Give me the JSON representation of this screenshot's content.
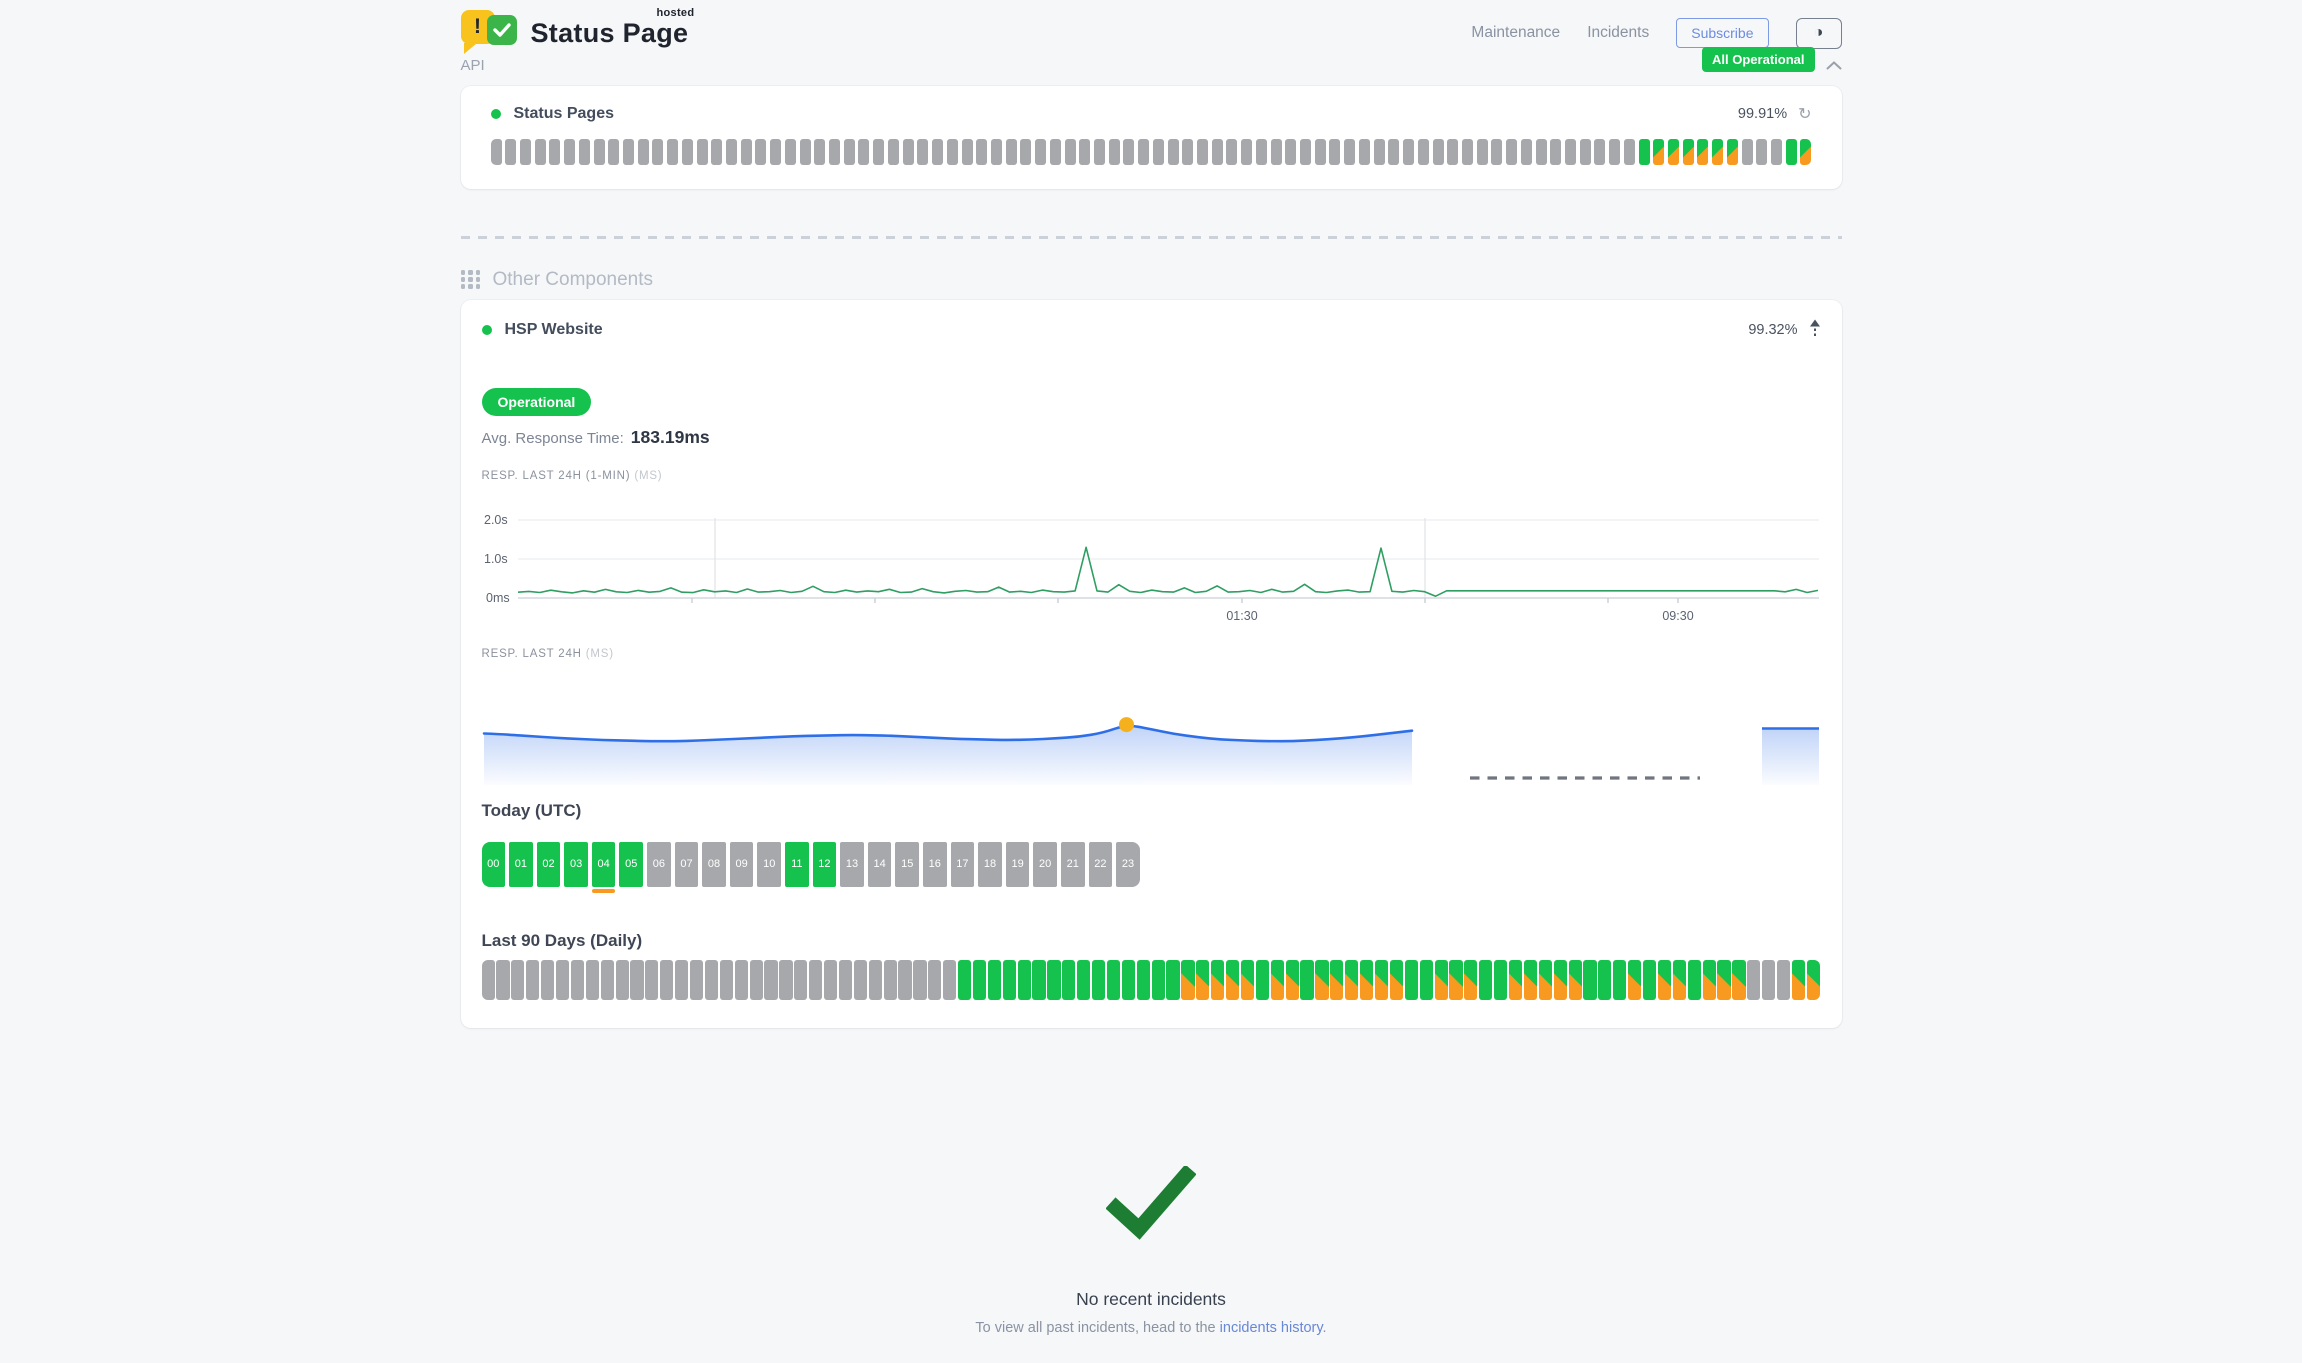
{
  "colors": {
    "green": "#16c24e",
    "orange": "#f79a1f",
    "gray_bar": "#a6a8ab",
    "blue": "#2e6fe8",
    "chart_green": "#2f9e63",
    "marker": "#f5b01e",
    "link": "#6787d7",
    "check": "#1d7d33"
  },
  "header": {
    "brand": {
      "name": "Status Page",
      "superscript": "hosted",
      "bubble_char": "!"
    },
    "nav": [
      "Maintenance",
      "Incidents"
    ],
    "subscribe_label": "Subscribe",
    "theme_toggle_glyph": "◑",
    "overall_status_badge": "All Operational"
  },
  "api": {
    "title": "API",
    "component": {
      "name": "Status Pages",
      "uptime": "99.91%"
    },
    "bars_legend": {
      "nodata": "gray",
      "up": "green",
      "deg": "green/orange split"
    },
    "bar_segments": [
      {
        "s": "nodata",
        "n": 78
      },
      {
        "s": "up",
        "n": 1
      },
      {
        "s": "deg",
        "n": 6
      },
      {
        "s": "nodata",
        "n": 3
      },
      {
        "s": "up",
        "n": 1
      },
      {
        "s": "deg",
        "n": 1
      }
    ]
  },
  "other": {
    "title": "Other Components",
    "component": {
      "name": "HSP Website",
      "uptime": "99.32%",
      "status_badge": "Operational",
      "avg_response_label": "Avg. Response Time:",
      "avg_response_value": "183.19ms",
      "chart1": {
        "label": "RESP. LAST 24H (1-MIN)",
        "unit_label": "(MS)",
        "chart_data": {
          "type": "line",
          "unit": "ms",
          "ylim_ms": [
            0,
            2000
          ],
          "y_ticks": [
            "2.0s",
            "1.0s",
            "0ms"
          ],
          "x_ticks": [
            "01:30",
            "09:30"
          ],
          "values_ms": [
            150,
            170,
            140,
            200,
            160,
            130,
            185,
            150,
            220,
            160,
            140,
            195,
            150,
            170,
            260,
            150,
            138,
            210,
            160,
            182,
            142,
            230,
            152,
            162,
            192,
            140,
            172,
            300,
            162,
            142,
            200,
            152,
            182,
            162,
            222,
            142,
            152,
            240,
            162,
            132,
            172,
            192,
            152,
            162,
            280,
            152,
            172,
            142,
            202,
            162,
            152,
            182,
            1300,
            182,
            152,
            340,
            172,
            142,
            202,
            162,
            152,
            260,
            142,
            172,
            310,
            152,
            162,
            192,
            142,
            222,
            152,
            172,
            350,
            162,
            142,
            182,
            202,
            152,
            162,
            1280,
            172,
            152,
            192,
            162,
            45,
            185,
            185,
            185,
            185,
            185,
            185,
            185,
            185,
            185,
            185,
            185,
            185,
            185,
            185,
            185,
            185,
            185,
            185,
            185,
            185,
            185,
            185,
            185,
            185,
            185,
            185,
            185,
            185,
            185,
            185,
            185,
            160,
            220,
            140,
            195
          ]
        }
      },
      "chart2": {
        "label": "RESP. LAST 24H",
        "unit_label": "(MS)",
        "chart_data": {
          "type": "area",
          "unit": "ms",
          "values_ms": [
            196,
            194,
            191,
            188,
            186,
            184,
            183,
            182,
            182,
            183,
            185,
            187,
            189,
            191,
            192,
            193,
            193,
            192,
            190,
            188,
            186,
            185,
            184,
            185,
            187,
            190,
            197,
            212,
            204,
            195,
            189,
            185,
            183,
            182,
            182,
            184,
            187,
            191,
            196,
            201
          ],
          "marker_index": 27,
          "gap": {
            "style": "dashed",
            "note": "missing data between segments"
          },
          "tail_value_ms": 205
        }
      },
      "today": {
        "title": "Today (UTC)",
        "hours": [
          {
            "label": "00",
            "state": "up"
          },
          {
            "label": "01",
            "state": "up"
          },
          {
            "label": "02",
            "state": "up"
          },
          {
            "label": "03",
            "state": "up"
          },
          {
            "label": "04",
            "state": "up",
            "current": true
          },
          {
            "label": "05",
            "state": "up"
          },
          {
            "label": "06",
            "state": "nodata"
          },
          {
            "label": "07",
            "state": "nodata"
          },
          {
            "label": "08",
            "state": "nodata"
          },
          {
            "label": "09",
            "state": "nodata"
          },
          {
            "label": "10",
            "state": "nodata"
          },
          {
            "label": "11",
            "state": "up"
          },
          {
            "label": "12",
            "state": "up"
          },
          {
            "label": "13",
            "state": "nodata"
          },
          {
            "label": "14",
            "state": "nodata"
          },
          {
            "label": "15",
            "state": "nodata"
          },
          {
            "label": "16",
            "state": "nodata"
          },
          {
            "label": "17",
            "state": "nodata"
          },
          {
            "label": "18",
            "state": "nodata"
          },
          {
            "label": "19",
            "state": "nodata"
          },
          {
            "label": "20",
            "state": "nodata"
          },
          {
            "label": "21",
            "state": "nodata"
          },
          {
            "label": "22",
            "state": "nodata"
          },
          {
            "label": "23",
            "state": "nodata"
          }
        ]
      },
      "last90": {
        "title": "Last 90 Days (Daily)",
        "bar_segments": [
          {
            "s": "nodata",
            "n": 32
          },
          {
            "s": "up",
            "n": 15
          },
          {
            "s": "deg",
            "n": 5
          },
          {
            "s": "up",
            "n": 1
          },
          {
            "s": "deg",
            "n": 2
          },
          {
            "s": "up",
            "n": 1
          },
          {
            "s": "deg",
            "n": 6
          },
          {
            "s": "up",
            "n": 2
          },
          {
            "s": "deg",
            "n": 3
          },
          {
            "s": "up",
            "n": 2
          },
          {
            "s": "deg",
            "n": 5
          },
          {
            "s": "up",
            "n": 3
          },
          {
            "s": "deg",
            "n": 1
          },
          {
            "s": "up",
            "n": 1
          },
          {
            "s": "deg",
            "n": 2
          },
          {
            "s": "up",
            "n": 1
          },
          {
            "s": "deg",
            "n": 3
          },
          {
            "s": "nodata",
            "n": 3
          },
          {
            "s": "deg",
            "n": 2
          }
        ]
      }
    }
  },
  "incidents": {
    "title": "No recent incidents",
    "subtext_prefix": "To view all past incidents, head to the ",
    "link_text": "incidents history",
    "subtext_suffix": "."
  }
}
